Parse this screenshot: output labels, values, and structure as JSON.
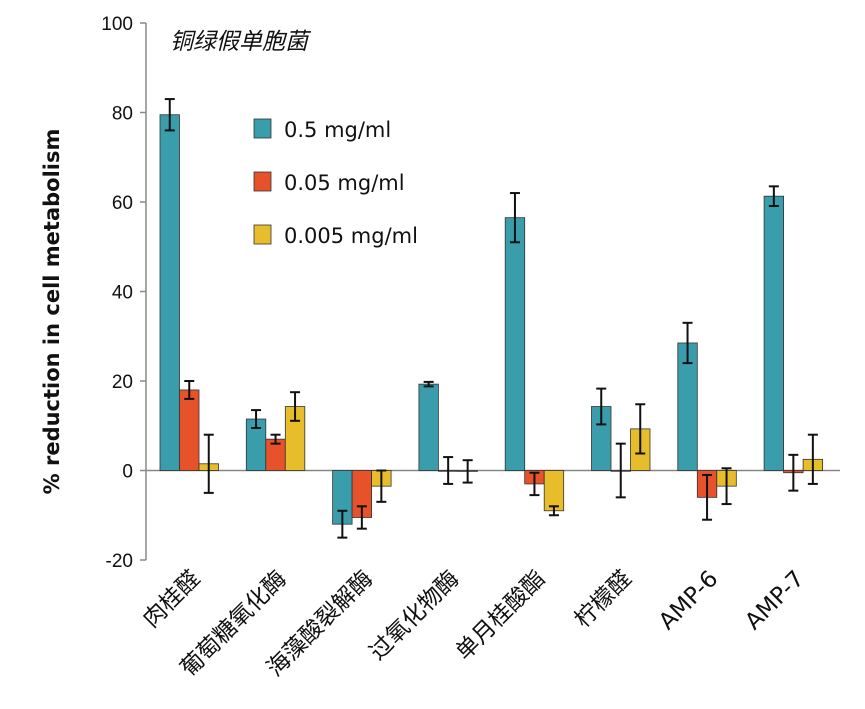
{
  "chart_data": {
    "type": "bar",
    "title": "铜绿假单胞菌",
    "xlabel": "",
    "ylabel": "% reduction in cell metabolism",
    "ylim": [
      -20,
      100
    ],
    "yticks": [
      100,
      80,
      60,
      40,
      20,
      0,
      -20
    ],
    "categories": [
      "肉桂醛",
      "葡萄糖氧化酶",
      "海藻酸裂解酶",
      "过氧化物酶",
      "单月桂酸酯",
      "柠檬醛",
      "AMP-6",
      "AMP-7"
    ],
    "legend_position": "top-left",
    "series": [
      {
        "name": "0.5 mg/ml",
        "color": "#3a9dab",
        "values": [
          79.5,
          11.5,
          -12,
          19.3,
          56.5,
          14.3,
          28.5,
          61.3
        ],
        "errors": [
          3.5,
          2,
          3,
          0.5,
          5.5,
          4,
          4.5,
          2.2
        ]
      },
      {
        "name": "0.05 mg/ml",
        "color": "#e8522b",
        "values": [
          18,
          7,
          -10.5,
          0,
          -3,
          0,
          -6,
          -0.5
        ],
        "errors": [
          2,
          1,
          2.5,
          3,
          2.5,
          6,
          5,
          4
        ]
      },
      {
        "name": "0.005 mg/ml",
        "color": "#e8bd2c",
        "values": [
          1.5,
          14.3,
          -3.5,
          -0.2,
          -9,
          9.3,
          -3.5,
          2.5
        ],
        "errors": [
          6.5,
          3.2,
          3.5,
          2.5,
          1,
          5.5,
          4,
          5.5
        ]
      }
    ]
  }
}
